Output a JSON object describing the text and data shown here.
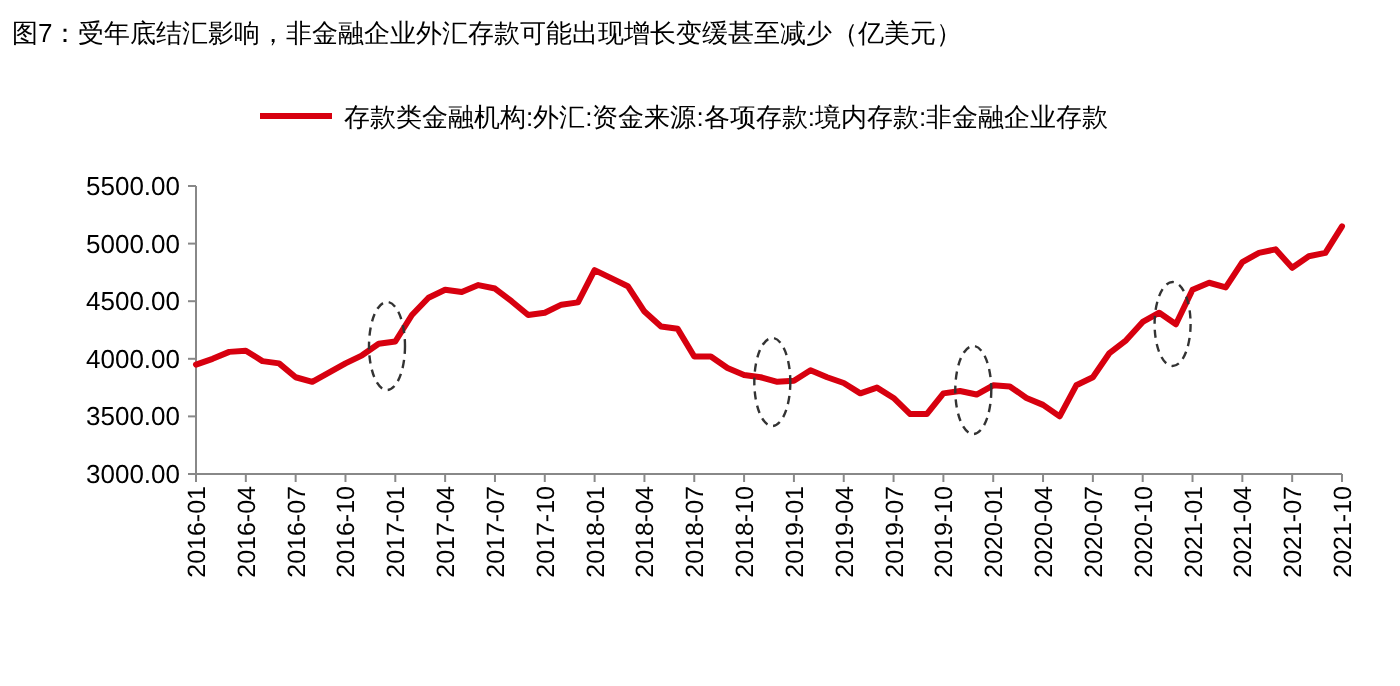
{
  "chart_data": {
    "type": "line",
    "title": "图7：受年底结汇影响，非金融企业外汇存款可能出现增长变缓甚至减少（亿美元）",
    "categories": [
      "2016-01",
      null,
      null,
      "2016-04",
      null,
      null,
      "2016-07",
      null,
      null,
      "2016-10",
      null,
      null,
      "2017-01",
      null,
      null,
      "2017-04",
      null,
      null,
      "2017-07",
      null,
      null,
      "2017-10",
      null,
      null,
      "2018-01",
      null,
      null,
      "2018-04",
      null,
      null,
      "2018-07",
      null,
      null,
      "2018-10",
      null,
      null,
      "2019-01",
      null,
      null,
      "2019-04",
      null,
      null,
      "2019-07",
      null,
      null,
      "2019-10",
      null,
      null,
      "2020-01",
      null,
      null,
      "2020-04",
      null,
      null,
      "2020-07",
      null,
      null,
      "2020-10",
      null,
      null,
      "2021-01",
      null,
      null,
      "2021-04",
      null,
      null,
      "2021-07",
      null,
      null,
      "2021-10"
    ],
    "series": [
      {
        "name": "存款类金融机构:外汇:资金来源:各项存款:境内存款:非金融企业存款",
        "color": "#d7000f",
        "values": [
          3950,
          4000,
          4060,
          4070,
          3980,
          3960,
          3840,
          3800,
          3880,
          3960,
          4030,
          4130,
          4150,
          4380,
          4530,
          4600,
          4580,
          4640,
          4610,
          4500,
          4380,
          4400,
          4470,
          4490,
          4770,
          4700,
          4630,
          4410,
          4280,
          4260,
          4020,
          4020,
          3920,
          3860,
          3840,
          3800,
          3810,
          3900,
          3840,
          3790,
          3700,
          3750,
          3660,
          3520,
          3520,
          3700,
          3720,
          3690,
          3770,
          3760,
          3660,
          3600,
          3500,
          3770,
          3840,
          4050,
          4160,
          4320,
          4400,
          4300,
          4600,
          4660,
          4620,
          4840,
          4920,
          4950,
          4790,
          4890,
          4920,
          5150
        ]
      }
    ],
    "ylim": [
      3000,
      5500
    ],
    "yticks": [
      {
        "value": 3000,
        "label": "3000.00"
      },
      {
        "value": 3500,
        "label": "3500.00"
      },
      {
        "value": 4000,
        "label": "4000.00"
      },
      {
        "value": 4500,
        "label": "4500.00"
      },
      {
        "value": 5000,
        "label": "5000.00"
      },
      {
        "value": 5500,
        "label": "5500.00"
      }
    ],
    "legend": "top",
    "grid": false,
    "marker": "none",
    "line_style": "solid"
  }
}
